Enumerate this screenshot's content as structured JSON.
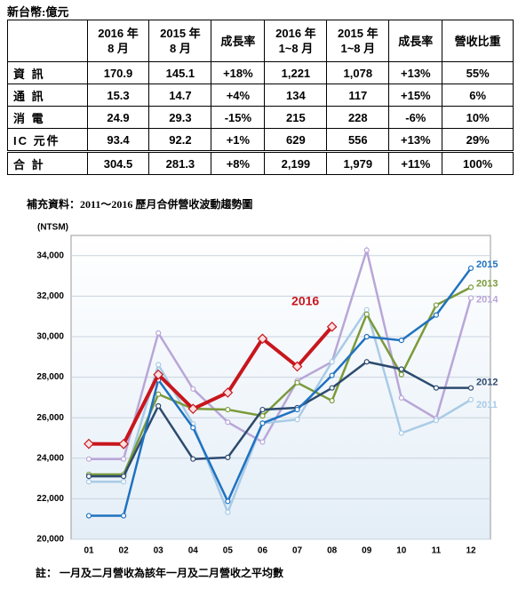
{
  "unit": "新台幣:億元",
  "table": {
    "header": [
      [
        "2016 年",
        "8 月"
      ],
      [
        "2015 年",
        "8 月"
      ],
      [
        "成長率"
      ],
      [
        "2016 年",
        "1~8 月"
      ],
      [
        "2015 年",
        "1~8 月"
      ],
      [
        "成長率"
      ],
      [
        "營收比重"
      ]
    ],
    "rows": [
      [
        "資 訊",
        "170.9",
        "145.1",
        "+18%",
        "1,221",
        "1,078",
        "+13%",
        "55%"
      ],
      [
        "通 訊",
        "15.3",
        "14.7",
        "+4%",
        "134",
        "117",
        "+15%",
        "6%"
      ],
      [
        "消 電",
        "24.9",
        "29.3",
        "-15%",
        "215",
        "228",
        "-6%",
        "10%"
      ],
      [
        "IC 元件",
        "93.4",
        "92.2",
        "+1%",
        "629",
        "556",
        "+13%",
        "29%"
      ]
    ],
    "total": [
      "合 計",
      "304.5",
      "281.3",
      "+8%",
      "2,199",
      "1,979",
      "+11%",
      "100%"
    ]
  },
  "chart_data": {
    "type": "line",
    "title": "補充資料：2011～2016 歷月合併營收波動趨勢圖",
    "y_label": "(NTSM)",
    "categories": [
      "01",
      "02",
      "03",
      "04",
      "05",
      "06",
      "07",
      "08",
      "09",
      "10",
      "11",
      "12"
    ],
    "ylim": [
      20000,
      35000
    ],
    "yticks": [
      {
        "value": 20000,
        "label": "20,000"
      },
      {
        "value": 22000,
        "label": "22,000"
      },
      {
        "value": 24000,
        "label": "24,000"
      },
      {
        "value": 26000,
        "label": "26,000"
      },
      {
        "value": 28000,
        "label": "28,000"
      },
      {
        "value": 30000,
        "label": "30,000"
      },
      {
        "value": 32000,
        "label": "32,000"
      },
      {
        "value": 34000,
        "label": "34,000"
      }
    ],
    "grid": true,
    "series": [
      {
        "name": "2014",
        "color": "#b9a6d8",
        "values": [
          23960,
          23960,
          30180,
          27420,
          25780,
          24800,
          27820,
          28760,
          34270,
          26980,
          25960,
          31910
        ]
      },
      {
        "name": "2011",
        "color": "#a9cbe6",
        "values": [
          22840,
          22840,
          28620,
          25690,
          21330,
          25730,
          25910,
          28760,
          31330,
          25240,
          25870,
          26890
        ]
      },
      {
        "name": "2013",
        "color": "#7a9a3a",
        "values": [
          23200,
          23200,
          27160,
          26440,
          26400,
          26090,
          27730,
          26840,
          31110,
          28130,
          31560,
          32440
        ]
      },
      {
        "name": "2012",
        "color": "#2d4a6e",
        "values": [
          23110,
          23110,
          26580,
          23960,
          24040,
          26400,
          26490,
          27470,
          28760,
          28400,
          27470,
          27470
        ]
      },
      {
        "name": "2015",
        "color": "#1f72c0",
        "values": [
          21160,
          21160,
          27870,
          25510,
          21870,
          25730,
          26400,
          28090,
          30000,
          29820,
          31070,
          33380
        ]
      },
      {
        "name": "2016",
        "color": "#c8161d",
        "marker": "diamond",
        "values": [
          24710,
          24700,
          28130,
          26440,
          27240,
          29900,
          28530,
          30490,
          null,
          null,
          null,
          null
        ]
      }
    ]
  },
  "note": "註： 一月及二月營收為該年一月及二月營收之平均數"
}
